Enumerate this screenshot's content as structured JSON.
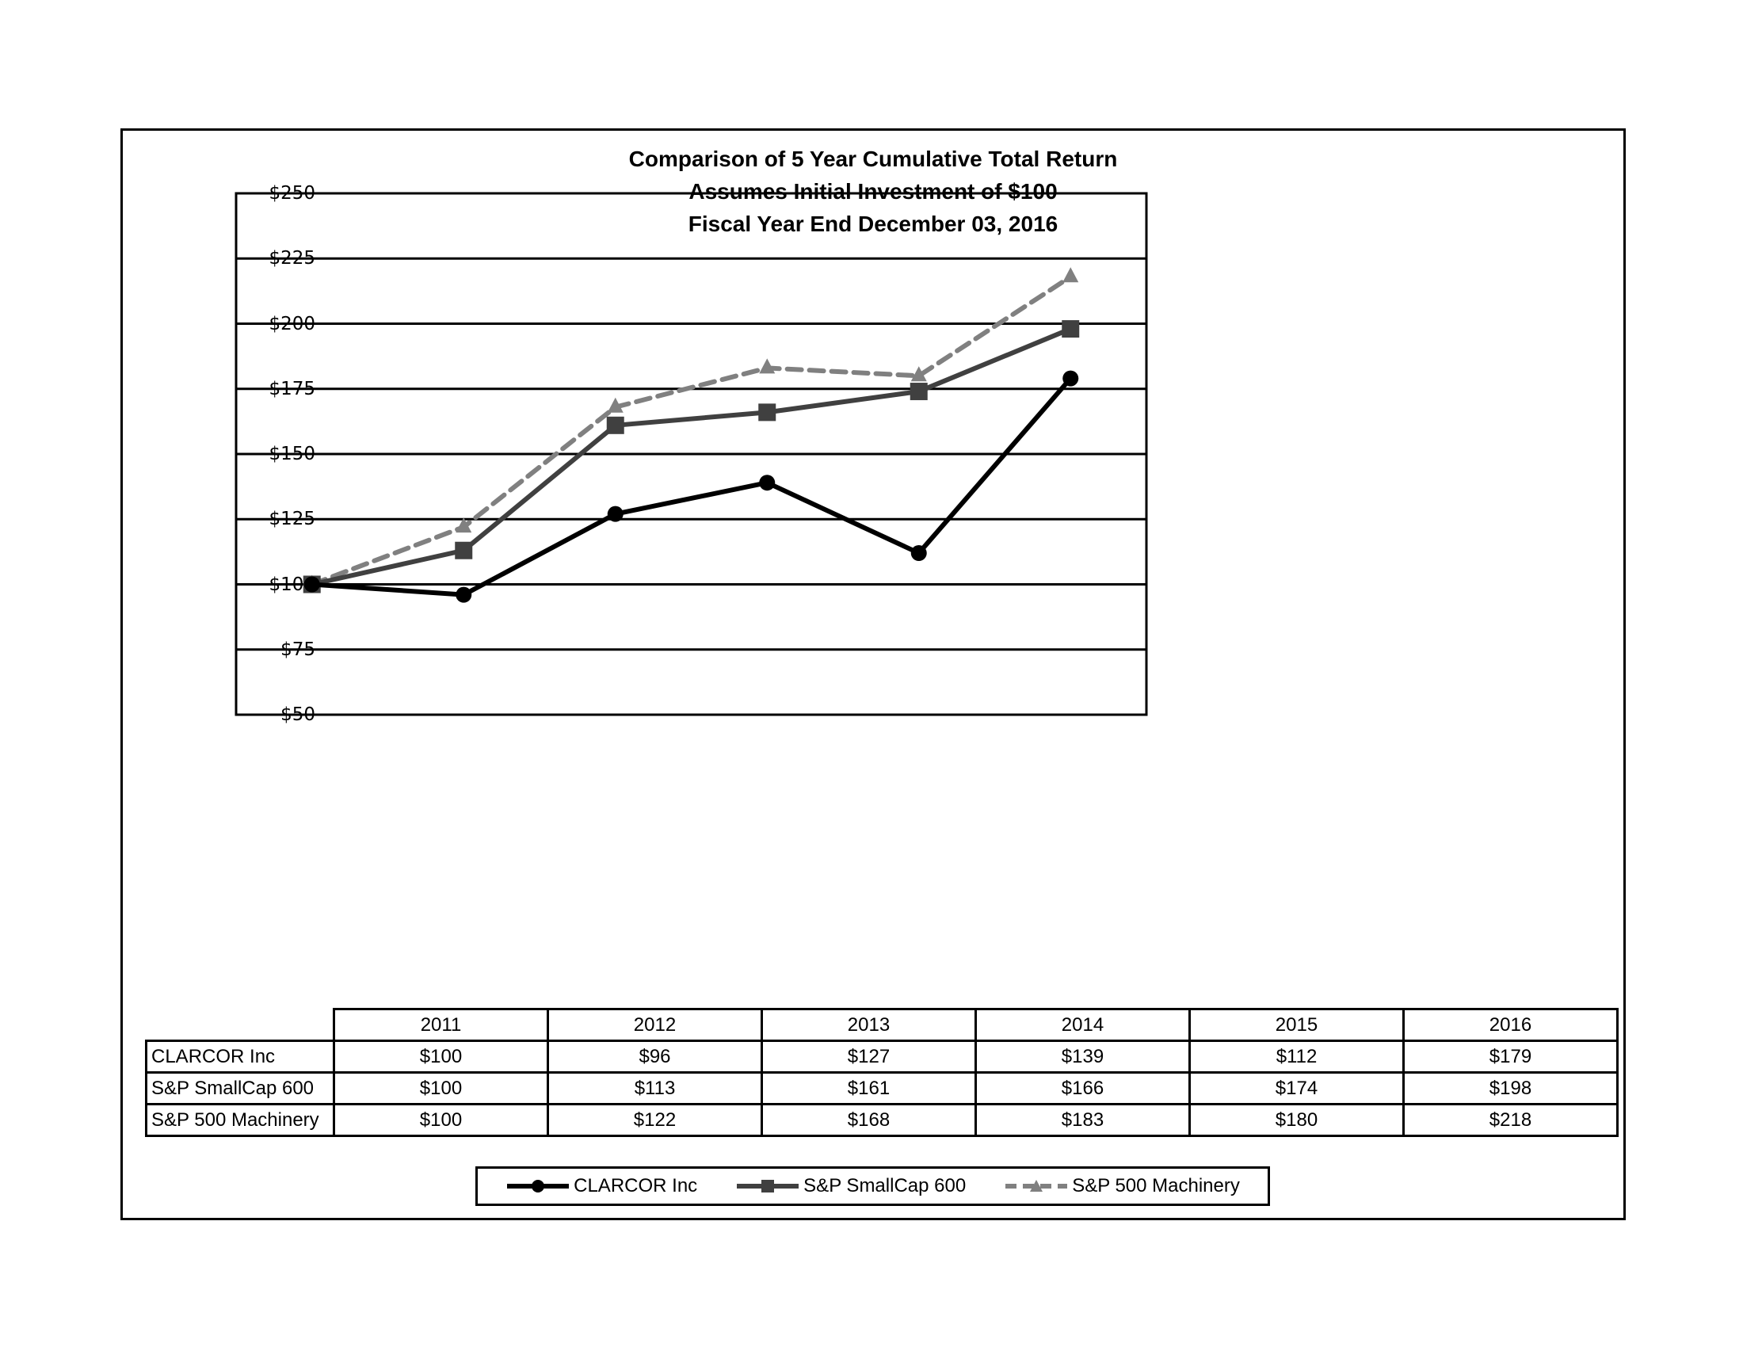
{
  "chart": {
    "title_lines": [
      "Comparison of 5 Year Cumulative Total Return",
      "Assumes Initial Investment of $100",
      "Fiscal Year End December 03, 2016"
    ],
    "y_ticks": [
      "$250",
      "$225",
      "$200",
      "$175",
      "$150",
      "$125",
      "$100",
      "$75",
      "$50"
    ],
    "table": {
      "years": [
        "2011",
        "2012",
        "2013",
        "2014",
        "2015",
        "2016"
      ],
      "rows": [
        {
          "label": "CLARCOR Inc",
          "values": [
            "$100",
            "$96",
            "$127",
            "$139",
            "$112",
            "$179"
          ]
        },
        {
          "label": "S&P SmallCap 600",
          "values": [
            "$100",
            "$113",
            "$161",
            "$166",
            "$174",
            "$198"
          ]
        },
        {
          "label": "S&P 500 Machinery",
          "values": [
            "$100",
            "$122",
            "$168",
            "$183",
            "$180",
            "$218"
          ]
        }
      ]
    },
    "legend": [
      {
        "label": "CLARCOR Inc",
        "marker": "circle",
        "color": "#000000",
        "style": "solid"
      },
      {
        "label": "S&P SmallCap 600",
        "marker": "square",
        "color": "#404040",
        "style": "solid"
      },
      {
        "label": "S&P 500 Machinery",
        "marker": "triangle",
        "color": "#808080",
        "style": "dashed"
      }
    ]
  },
  "chart_data": {
    "type": "line",
    "title": "Comparison of 5 Year Cumulative Total Return",
    "subtitle": "Assumes Initial Investment of $100 — Fiscal Year End December 03, 2016",
    "categories": [
      "2011",
      "2012",
      "2013",
      "2014",
      "2015",
      "2016"
    ],
    "series": [
      {
        "name": "CLARCOR Inc",
        "values": [
          100,
          96,
          127,
          139,
          112,
          179
        ],
        "color": "#000000",
        "marker": "circle",
        "line": "solid"
      },
      {
        "name": "S&P SmallCap 600",
        "values": [
          100,
          113,
          161,
          166,
          174,
          198
        ],
        "color": "#404040",
        "marker": "square",
        "line": "solid"
      },
      {
        "name": "S&P 500 Machinery",
        "values": [
          100,
          122,
          168,
          183,
          180,
          218
        ],
        "color": "#808080",
        "marker": "triangle",
        "line": "dashed"
      }
    ],
    "xlabel": "",
    "ylabel": "",
    "ylim": [
      50,
      250
    ],
    "y_tick_step": 25,
    "y_tick_format": "$",
    "grid": true,
    "legend_position": "bottom",
    "data_table": true
  }
}
